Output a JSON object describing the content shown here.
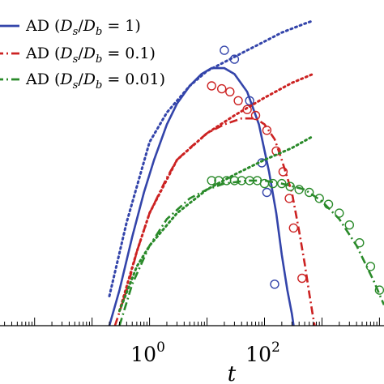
{
  "chart_data": {
    "type": "line",
    "xscale": "log",
    "xlim": [
      0.0025,
      12000
    ],
    "ylim": [
      0,
      1.1
    ],
    "xlabel": "t",
    "xticks": [
      {
        "value": 1,
        "base": "10",
        "exp": "0"
      },
      {
        "value": 100,
        "base": "10",
        "exp": "2"
      }
    ],
    "series": [
      {
        "name": "AD (D_s/D_b = 1)",
        "legend_math": {
          "lhs": "AD (",
          "num": "D",
          "num_sub": "s",
          "den": "D",
          "den_sub": "b",
          "rhs": " = 1)"
        },
        "color": "#3344aa",
        "style": "solid",
        "curve": {
          "x": [
            0.2,
            0.3,
            0.5,
            0.8,
            1.2,
            2,
            3,
            5,
            8,
            12,
            20,
            30,
            50,
            80,
            120,
            160,
            200,
            250,
            300,
            350
          ],
          "y": [
            0.0,
            0.12,
            0.3,
            0.45,
            0.56,
            0.68,
            0.75,
            0.81,
            0.85,
            0.87,
            0.87,
            0.85,
            0.79,
            0.68,
            0.52,
            0.38,
            0.24,
            0.12,
            0.04,
            -0.05
          ]
        },
        "asymptote": {
          "x": [
            0.2,
            0.4,
            1,
            2,
            5,
            10,
            20,
            50,
            100,
            200,
            500,
            700
          ],
          "y": [
            0.1,
            0.35,
            0.62,
            0.72,
            0.81,
            0.86,
            0.89,
            0.93,
            0.96,
            0.99,
            1.02,
            1.03
          ]
        },
        "markers": {
          "x": [
            20,
            30,
            55,
            90,
            110,
            150
          ],
          "y": [
            0.93,
            0.9,
            0.76,
            0.55,
            0.45,
            0.14
          ]
        }
      },
      {
        "name": "AD (D_s/D_b = 0.1)",
        "legend_math": {
          "lhs": "AD (",
          "num": "D",
          "num_sub": "s",
          "den": "D",
          "den_sub": "b",
          "rhs": " = 0.1)"
        },
        "color": "#cc2222",
        "style": "dashdot",
        "curve": {
          "x": [
            0.25,
            0.4,
            0.6,
            1,
            2,
            3,
            5,
            10,
            20,
            40,
            70,
            100,
            150,
            200,
            300,
            400,
            500,
            600,
            700,
            800
          ],
          "y": [
            0.0,
            0.12,
            0.25,
            0.38,
            0.5,
            0.56,
            0.6,
            0.65,
            0.68,
            0.7,
            0.7,
            0.68,
            0.63,
            0.56,
            0.45,
            0.32,
            0.21,
            0.11,
            0.03,
            -0.03
          ]
        },
        "asymptote": {
          "x": [
            0.3,
            0.6,
            1,
            3,
            10,
            30,
            100,
            300,
            700
          ],
          "y": [
            0.05,
            0.25,
            0.38,
            0.56,
            0.65,
            0.71,
            0.77,
            0.82,
            0.85
          ]
        },
        "markers": {
          "x": [
            12,
            18,
            25,
            35,
            50,
            70,
            110,
            160,
            210,
            270,
            320,
            450
          ],
          "y": [
            0.81,
            0.8,
            0.79,
            0.76,
            0.73,
            0.71,
            0.66,
            0.59,
            0.52,
            0.43,
            0.33,
            0.16
          ]
        }
      },
      {
        "name": "AD (D_s/D_b = 0.01)",
        "legend_math": {
          "lhs": "AD (",
          "num": "D",
          "num_sub": "s",
          "den": "D",
          "den_sub": "b",
          "rhs": " = 0.01)"
        },
        "color": "#2a8a2a",
        "style": "dashdot",
        "curve": {
          "x": [
            0.3,
            0.5,
            1,
            2,
            5,
            10,
            20,
            50,
            100,
            200,
            500,
            1000,
            2000,
            4000,
            8000,
            12000
          ],
          "y": [
            0.0,
            0.14,
            0.27,
            0.36,
            0.43,
            0.46,
            0.48,
            0.49,
            0.49,
            0.48,
            0.46,
            0.42,
            0.36,
            0.27,
            0.15,
            0.07
          ]
        },
        "asymptote": {
          "x": [
            0.3,
            0.6,
            1,
            3,
            10,
            30,
            100,
            300,
            700
          ],
          "y": [
            0.05,
            0.2,
            0.27,
            0.38,
            0.46,
            0.51,
            0.56,
            0.6,
            0.64
          ]
        },
        "markers": {
          "x": [
            12,
            16,
            22,
            30,
            40,
            55,
            75,
            100,
            140,
            200,
            280,
            400,
            600,
            900,
            1300,
            2000,
            3000,
            4500,
            7000,
            10000
          ],
          "y": [
            0.49,
            0.49,
            0.49,
            0.49,
            0.49,
            0.49,
            0.49,
            0.48,
            0.48,
            0.48,
            0.47,
            0.46,
            0.45,
            0.43,
            0.41,
            0.38,
            0.34,
            0.28,
            0.2,
            0.12
          ]
        }
      }
    ]
  }
}
